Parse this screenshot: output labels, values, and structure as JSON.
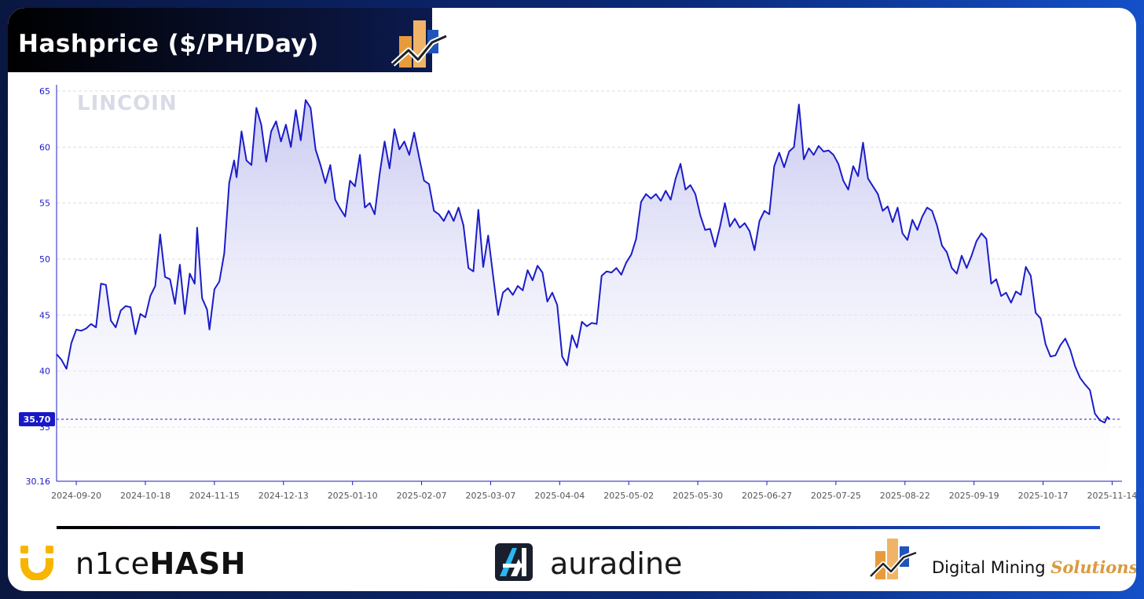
{
  "header": {
    "title": "Hashprice ($/PH/Day)",
    "logo_icon": "digital-mining-solutions-logo"
  },
  "watermark": "LINCOIN",
  "footer": {
    "nicehash_mark": "n1ce",
    "nicehash_bold": "HASH",
    "auradine": "auradine",
    "dms_prefix": "Digital Mining ",
    "dms_suffix": "Solutions"
  },
  "colors": {
    "line": "#1c1cc8",
    "fill_top": "#c9c9f2",
    "grid": "#dedee6",
    "axis_text": "#1a1ac8",
    "tick_text": "#555555",
    "price_tag_bg": "#1818c8",
    "accent_orange": "#e89b3c",
    "accent_blue": "#2054b8"
  },
  "chart_data": {
    "type": "area",
    "title": "Hashprice ($/PH/Day)",
    "xlabel": "",
    "ylabel": "",
    "ylim": [
      30.16,
      65
    ],
    "y_ticks": [
      "65",
      "60",
      "55",
      "50",
      "45",
      "40",
      "35",
      "30.16"
    ],
    "x_tick_labels": [
      "2024-09-20",
      "2024-10-18",
      "2024-11-15",
      "2024-12-13",
      "2025-01-10",
      "2025-02-07",
      "2025-03-07",
      "2025-04-04",
      "2025-05-02",
      "2025-05-30",
      "2025-06-27",
      "2025-07-25",
      "2025-08-22",
      "2025-09-19",
      "2025-10-17",
      "2025-11-14"
    ],
    "x_range": [
      "2024-09-12",
      "2025-11-18"
    ],
    "current_value": "35.70",
    "current_value_num": 35.7,
    "grid": true,
    "legend": "none",
    "series": [
      {
        "values": [
          [
            "2024-09-12",
            41.5
          ],
          [
            "2024-09-14",
            41.0
          ],
          [
            "2024-09-16",
            40.2
          ],
          [
            "2024-09-18",
            42.5
          ],
          [
            "2024-09-20",
            43.7
          ],
          [
            "2024-09-22",
            43.6
          ],
          [
            "2024-09-24",
            43.8
          ],
          [
            "2024-09-26",
            44.2
          ],
          [
            "2024-09-28",
            43.9
          ],
          [
            "2024-09-30",
            47.8
          ],
          [
            "2024-10-02",
            47.7
          ],
          [
            "2024-10-04",
            44.5
          ],
          [
            "2024-10-06",
            43.9
          ],
          [
            "2024-10-08",
            45.4
          ],
          [
            "2024-10-10",
            45.8
          ],
          [
            "2024-10-12",
            45.7
          ],
          [
            "2024-10-14",
            43.3
          ],
          [
            "2024-10-16",
            45.1
          ],
          [
            "2024-10-18",
            44.8
          ],
          [
            "2024-10-20",
            46.7
          ],
          [
            "2024-10-22",
            47.6
          ],
          [
            "2024-10-24",
            52.2
          ],
          [
            "2024-10-26",
            48.4
          ],
          [
            "2024-10-28",
            48.2
          ],
          [
            "2024-10-30",
            46.0
          ],
          [
            "2024-11-01",
            49.5
          ],
          [
            "2024-11-03",
            45.1
          ],
          [
            "2024-11-05",
            48.7
          ],
          [
            "2024-11-07",
            47.8
          ],
          [
            "2024-11-08",
            52.8
          ],
          [
            "2024-11-10",
            46.5
          ],
          [
            "2024-11-12",
            45.5
          ],
          [
            "2024-11-13",
            43.7
          ],
          [
            "2024-11-15",
            47.3
          ],
          [
            "2024-11-17",
            48.0
          ],
          [
            "2024-11-19",
            50.5
          ],
          [
            "2024-11-21",
            56.8
          ],
          [
            "2024-11-23",
            58.8
          ],
          [
            "2024-11-24",
            57.3
          ],
          [
            "2024-11-26",
            61.4
          ],
          [
            "2024-11-28",
            58.8
          ],
          [
            "2024-11-30",
            58.4
          ],
          [
            "2024-12-02",
            63.5
          ],
          [
            "2024-12-04",
            62.0
          ],
          [
            "2024-12-06",
            58.7
          ],
          [
            "2024-12-08",
            61.4
          ],
          [
            "2024-12-10",
            62.3
          ],
          [
            "2024-12-12",
            60.5
          ],
          [
            "2024-12-14",
            62.0
          ],
          [
            "2024-12-16",
            60.0
          ],
          [
            "2024-12-18",
            63.3
          ],
          [
            "2024-12-20",
            60.6
          ],
          [
            "2024-12-22",
            64.2
          ],
          [
            "2024-12-24",
            63.5
          ],
          [
            "2024-12-26",
            59.8
          ],
          [
            "2024-12-28",
            58.4
          ],
          [
            "2024-12-30",
            56.8
          ],
          [
            "2025-01-01",
            58.4
          ],
          [
            "2025-01-03",
            55.3
          ],
          [
            "2025-01-05",
            54.5
          ],
          [
            "2025-01-07",
            53.8
          ],
          [
            "2025-01-09",
            57.0
          ],
          [
            "2025-01-11",
            56.5
          ],
          [
            "2025-01-13",
            59.3
          ],
          [
            "2025-01-15",
            54.6
          ],
          [
            "2025-01-17",
            55.0
          ],
          [
            "2025-01-19",
            54.0
          ],
          [
            "2025-01-21",
            57.6
          ],
          [
            "2025-01-23",
            60.5
          ],
          [
            "2025-01-25",
            58.1
          ],
          [
            "2025-01-27",
            61.6
          ],
          [
            "2025-01-29",
            59.8
          ],
          [
            "2025-01-31",
            60.5
          ],
          [
            "2025-02-02",
            59.3
          ],
          [
            "2025-02-04",
            61.3
          ],
          [
            "2025-02-06",
            59.1
          ],
          [
            "2025-02-08",
            57.0
          ],
          [
            "2025-02-10",
            56.7
          ],
          [
            "2025-02-12",
            54.3
          ],
          [
            "2025-02-14",
            54.0
          ],
          [
            "2025-02-16",
            53.4
          ],
          [
            "2025-02-18",
            54.3
          ],
          [
            "2025-02-20",
            53.4
          ],
          [
            "2025-02-22",
            54.6
          ],
          [
            "2025-02-24",
            53.0
          ],
          [
            "2025-02-26",
            49.2
          ],
          [
            "2025-02-28",
            48.9
          ],
          [
            "2025-03-02",
            54.4
          ],
          [
            "2025-03-04",
            49.3
          ],
          [
            "2025-03-06",
            52.1
          ],
          [
            "2025-03-08",
            48.5
          ],
          [
            "2025-03-10",
            45.0
          ],
          [
            "2025-03-12",
            47.0
          ],
          [
            "2025-03-14",
            47.4
          ],
          [
            "2025-03-16",
            46.8
          ],
          [
            "2025-03-18",
            47.6
          ],
          [
            "2025-03-20",
            47.2
          ],
          [
            "2025-03-22",
            49.0
          ],
          [
            "2025-03-24",
            48.1
          ],
          [
            "2025-03-26",
            49.4
          ],
          [
            "2025-03-28",
            48.8
          ],
          [
            "2025-03-30",
            46.2
          ],
          [
            "2025-04-01",
            47.0
          ],
          [
            "2025-04-03",
            45.9
          ],
          [
            "2025-04-05",
            41.3
          ],
          [
            "2025-04-07",
            40.5
          ],
          [
            "2025-04-09",
            43.2
          ],
          [
            "2025-04-11",
            42.1
          ],
          [
            "2025-04-13",
            44.4
          ],
          [
            "2025-04-15",
            44.0
          ],
          [
            "2025-04-17",
            44.3
          ],
          [
            "2025-04-19",
            44.2
          ],
          [
            "2025-04-21",
            48.5
          ],
          [
            "2025-04-23",
            48.9
          ],
          [
            "2025-04-25",
            48.8
          ],
          [
            "2025-04-27",
            49.2
          ],
          [
            "2025-04-29",
            48.6
          ],
          [
            "2025-05-01",
            49.7
          ],
          [
            "2025-05-03",
            50.4
          ],
          [
            "2025-05-05",
            51.8
          ],
          [
            "2025-05-07",
            55.1
          ],
          [
            "2025-05-09",
            55.8
          ],
          [
            "2025-05-11",
            55.4
          ],
          [
            "2025-05-13",
            55.8
          ],
          [
            "2025-05-15",
            55.2
          ],
          [
            "2025-05-17",
            56.1
          ],
          [
            "2025-05-19",
            55.3
          ],
          [
            "2025-05-21",
            57.2
          ],
          [
            "2025-05-23",
            58.5
          ],
          [
            "2025-05-25",
            56.2
          ],
          [
            "2025-05-27",
            56.6
          ],
          [
            "2025-05-29",
            55.8
          ],
          [
            "2025-05-31",
            53.9
          ],
          [
            "2025-06-02",
            52.6
          ],
          [
            "2025-06-04",
            52.7
          ],
          [
            "2025-06-06",
            51.1
          ],
          [
            "2025-06-08",
            52.9
          ],
          [
            "2025-06-10",
            55.0
          ],
          [
            "2025-06-12",
            52.9
          ],
          [
            "2025-06-14",
            53.6
          ],
          [
            "2025-06-16",
            52.8
          ],
          [
            "2025-06-18",
            53.2
          ],
          [
            "2025-06-20",
            52.5
          ],
          [
            "2025-06-22",
            50.8
          ],
          [
            "2025-06-24",
            53.4
          ],
          [
            "2025-06-26",
            54.3
          ],
          [
            "2025-06-28",
            54.0
          ],
          [
            "2025-06-30",
            58.3
          ],
          [
            "2025-07-02",
            59.5
          ],
          [
            "2025-07-04",
            58.2
          ],
          [
            "2025-07-06",
            59.6
          ],
          [
            "2025-07-08",
            60.0
          ],
          [
            "2025-07-10",
            63.8
          ],
          [
            "2025-07-12",
            58.9
          ],
          [
            "2025-07-14",
            59.9
          ],
          [
            "2025-07-16",
            59.3
          ],
          [
            "2025-07-18",
            60.1
          ],
          [
            "2025-07-20",
            59.6
          ],
          [
            "2025-07-22",
            59.7
          ],
          [
            "2025-07-24",
            59.3
          ],
          [
            "2025-07-26",
            58.5
          ],
          [
            "2025-07-28",
            57.0
          ],
          [
            "2025-07-30",
            56.2
          ],
          [
            "2025-08-01",
            58.3
          ],
          [
            "2025-08-03",
            57.4
          ],
          [
            "2025-08-05",
            60.4
          ],
          [
            "2025-08-07",
            57.2
          ],
          [
            "2025-08-09",
            56.5
          ],
          [
            "2025-08-11",
            55.8
          ],
          [
            "2025-08-13",
            54.3
          ],
          [
            "2025-08-15",
            54.7
          ],
          [
            "2025-08-17",
            53.3
          ],
          [
            "2025-08-19",
            54.6
          ],
          [
            "2025-08-21",
            52.3
          ],
          [
            "2025-08-23",
            51.7
          ],
          [
            "2025-08-25",
            53.5
          ],
          [
            "2025-08-27",
            52.6
          ],
          [
            "2025-08-29",
            53.8
          ],
          [
            "2025-08-31",
            54.6
          ],
          [
            "2025-09-02",
            54.3
          ],
          [
            "2025-09-04",
            53.0
          ],
          [
            "2025-09-06",
            51.2
          ],
          [
            "2025-09-08",
            50.6
          ],
          [
            "2025-09-10",
            49.2
          ],
          [
            "2025-09-12",
            48.7
          ],
          [
            "2025-09-14",
            50.3
          ],
          [
            "2025-09-16",
            49.2
          ],
          [
            "2025-09-18",
            50.3
          ],
          [
            "2025-09-20",
            51.6
          ],
          [
            "2025-09-22",
            52.3
          ],
          [
            "2025-09-24",
            51.8
          ],
          [
            "2025-09-26",
            47.8
          ],
          [
            "2025-09-28",
            48.2
          ],
          [
            "2025-09-30",
            46.7
          ],
          [
            "2025-10-02",
            47.0
          ],
          [
            "2025-10-04",
            46.1
          ],
          [
            "2025-10-06",
            47.1
          ],
          [
            "2025-10-08",
            46.8
          ],
          [
            "2025-10-10",
            49.3
          ],
          [
            "2025-10-12",
            48.5
          ],
          [
            "2025-10-14",
            45.2
          ],
          [
            "2025-10-16",
            44.7
          ],
          [
            "2025-10-18",
            42.4
          ],
          [
            "2025-10-20",
            41.3
          ],
          [
            "2025-10-22",
            41.4
          ],
          [
            "2025-10-24",
            42.3
          ],
          [
            "2025-10-26",
            42.9
          ],
          [
            "2025-10-28",
            41.9
          ],
          [
            "2025-10-30",
            40.4
          ],
          [
            "2025-11-01",
            39.4
          ],
          [
            "2025-11-03",
            38.8
          ],
          [
            "2025-11-05",
            38.3
          ],
          [
            "2025-11-07",
            36.2
          ],
          [
            "2025-11-09",
            35.6
          ],
          [
            "2025-11-11",
            35.4
          ],
          [
            "2025-11-12",
            35.9
          ],
          [
            "2025-11-13",
            35.7
          ]
        ]
      }
    ]
  }
}
